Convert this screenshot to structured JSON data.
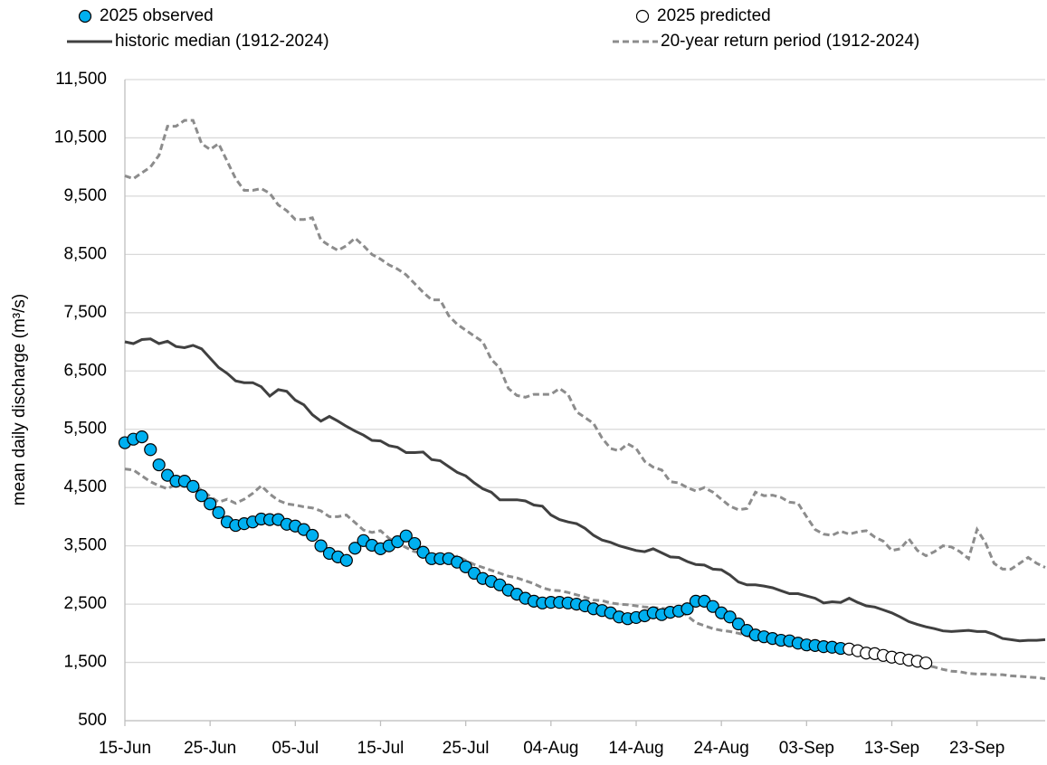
{
  "chart_data": {
    "type": "line",
    "y_label": "mean daily discharge (m³/s)",
    "ylim": [
      500,
      11500
    ],
    "yticks": [
      500,
      {
        "value": 1500,
        "label": "1,500"
      },
      {
        "value": 2500,
        "label": "2,500"
      },
      {
        "value": 3500,
        "label": "3,500"
      },
      {
        "value": 4500,
        "label": "4,500"
      },
      {
        "value": 5500,
        "label": "5,500"
      },
      {
        "value": 6500,
        "label": "6,500"
      },
      {
        "value": 7500,
        "label": "7,500"
      },
      {
        "value": 8500,
        "label": "8,500"
      },
      {
        "value": 9500,
        "label": "9,500"
      },
      {
        "value": 10500,
        "label": "10,500"
      },
      {
        "value": 11500,
        "label": "11,500"
      }
    ],
    "grid": true,
    "categories": [
      "15-Jun",
      null,
      null,
      null,
      null,
      null,
      null,
      null,
      null,
      null,
      "25-Jun",
      null,
      null,
      null,
      null,
      null,
      null,
      null,
      null,
      null,
      "05-Jul",
      null,
      null,
      null,
      null,
      null,
      null,
      null,
      null,
      null,
      "15-Jul",
      null,
      null,
      null,
      null,
      null,
      null,
      null,
      null,
      null,
      "25-Jul",
      null,
      null,
      null,
      null,
      null,
      null,
      null,
      null,
      null,
      "04-Aug",
      null,
      null,
      null,
      null,
      null,
      null,
      null,
      null,
      null,
      "14-Aug",
      null,
      null,
      null,
      null,
      null,
      null,
      null,
      null,
      null,
      "24-Aug",
      null,
      null,
      null,
      null,
      null,
      null,
      null,
      null,
      null,
      "03-Sep",
      null,
      null,
      null,
      null,
      null,
      null,
      null,
      null,
      null,
      "13-Sep",
      null,
      null,
      null,
      null,
      null,
      null,
      null,
      null,
      null,
      "23-Sep",
      null,
      null,
      null,
      null,
      null,
      null,
      null,
      null
    ],
    "series": [
      {
        "name": "2025 observed",
        "color": "#00b0f0",
        "style": "marker",
        "values": [
          5270,
          5330,
          5370,
          5150,
          4890,
          4710,
          4610,
          4610,
          4520,
          4360,
          4220,
          4070,
          3910,
          3850,
          3880,
          3910,
          3960,
          3950,
          3950,
          3870,
          3840,
          3780,
          3680,
          3500,
          3370,
          3310,
          3250,
          3460,
          3590,
          3510,
          3450,
          3500,
          3570,
          3670,
          3540,
          3390,
          3280,
          3280,
          3280,
          3220,
          3140,
          3030,
          2940,
          2890,
          2830,
          2740,
          2670,
          2600,
          2550,
          2520,
          2530,
          2530,
          2520,
          2500,
          2470,
          2420,
          2390,
          2350,
          2280,
          2250,
          2270,
          2300,
          2350,
          2320,
          2360,
          2380,
          2420,
          2550,
          2550,
          2460,
          2350,
          2280,
          2160,
          2050,
          1970,
          1940,
          1910,
          1880,
          1870,
          1830,
          1800,
          1790,
          1770,
          1760,
          1740,
          null,
          null,
          null,
          null,
          null,
          null,
          null,
          null,
          null,
          null,
          null,
          null,
          null,
          null,
          null,
          null,
          null,
          null,
          null,
          null,
          null,
          null,
          null,
          null
        ]
      },
      {
        "name": "2025 predicted",
        "color": "#ffffff",
        "style": "marker",
        "values": [
          null,
          null,
          null,
          null,
          null,
          null,
          null,
          null,
          null,
          null,
          null,
          null,
          null,
          null,
          null,
          null,
          null,
          null,
          null,
          null,
          null,
          null,
          null,
          null,
          null,
          null,
          null,
          null,
          null,
          null,
          null,
          null,
          null,
          null,
          null,
          null,
          null,
          null,
          null,
          null,
          null,
          null,
          null,
          null,
          null,
          null,
          null,
          null,
          null,
          null,
          null,
          null,
          null,
          null,
          null,
          null,
          null,
          null,
          null,
          null,
          null,
          null,
          null,
          null,
          null,
          null,
          null,
          null,
          null,
          null,
          null,
          null,
          null,
          null,
          null,
          null,
          null,
          null,
          null,
          null,
          null,
          null,
          null,
          null,
          null,
          1730,
          1700,
          1660,
          1650,
          1620,
          1590,
          1570,
          1540,
          1520,
          1490,
          null,
          null,
          null,
          null,
          null,
          null,
          null,
          null,
          null,
          null,
          null,
          null,
          null,
          null
        ]
      },
      {
        "name": "historic median (1912-2024)",
        "color": "#404040",
        "style": "line",
        "values": [
          7000,
          6970,
          7040,
          7050,
          6970,
          7010,
          6920,
          6900,
          6940,
          6880,
          6720,
          6560,
          6460,
          6330,
          6300,
          6300,
          6230,
          6070,
          6180,
          6150,
          6000,
          5920,
          5750,
          5640,
          5720,
          5640,
          5550,
          5470,
          5400,
          5310,
          5300,
          5220,
          5190,
          5100,
          5100,
          5110,
          4980,
          4960,
          4860,
          4760,
          4700,
          4580,
          4480,
          4420,
          4290,
          4290,
          4290,
          4270,
          4200,
          4180,
          4030,
          3950,
          3910,
          3880,
          3800,
          3680,
          3600,
          3560,
          3500,
          3460,
          3420,
          3400,
          3450,
          3380,
          3310,
          3300,
          3230,
          3180,
          3170,
          3100,
          3090,
          3000,
          2880,
          2830,
          2830,
          2810,
          2780,
          2730,
          2680,
          2680,
          2640,
          2600,
          2520,
          2540,
          2530,
          2600,
          2530,
          2470,
          2450,
          2400,
          2350,
          2280,
          2200,
          2150,
          2110,
          2080,
          2040,
          2030,
          2040,
          2050,
          2030,
          2030,
          1980,
          1910,
          1890,
          1870,
          1880,
          1880,
          1890
        ]
      },
      {
        "name": "20-year return period (1912-2024)",
        "color": "#8c8c8c",
        "style": "dashed",
        "values": [
          9850,
          9800,
          9900,
          10000,
          10200,
          10700,
          10700,
          10800,
          10800,
          10400,
          10300,
          10400,
          10100,
          9800,
          9600,
          9600,
          9630,
          9550,
          9350,
          9250,
          9100,
          9100,
          9130,
          8750,
          8650,
          8570,
          8650,
          8780,
          8650,
          8500,
          8420,
          8320,
          8250,
          8150,
          8000,
          7850,
          7720,
          7720,
          7450,
          7300,
          7200,
          7100,
          7000,
          6700,
          6550,
          6200,
          6080,
          6050,
          6100,
          6100,
          6100,
          6200,
          6100,
          5800,
          5700,
          5600,
          5350,
          5170,
          5130,
          5250,
          5170,
          4950,
          4850,
          4800,
          4600,
          4580,
          4500,
          4440,
          4500,
          4420,
          4300,
          4180,
          4120,
          4140,
          4420,
          4360,
          4370,
          4330,
          4250,
          4230,
          4000,
          3780,
          3700,
          3680,
          3750,
          3700,
          3740,
          3760,
          3650,
          3580,
          3420,
          3450,
          3620,
          3420,
          3330,
          3400,
          3500,
          3480,
          3400,
          3280,
          3780,
          3550,
          3200,
          3100,
          3100,
          3200,
          3300,
          3200,
          3130
        ],
        "lower_values": [
          4820,
          4800,
          4700,
          4600,
          4530,
          4480,
          4560,
          4600,
          4570,
          4450,
          4350,
          4250,
          4300,
          4230,
          4300,
          4400,
          4530,
          4390,
          4280,
          4220,
          4200,
          4170,
          4150,
          4100,
          4000,
          4000,
          4030,
          3900,
          3770,
          3730,
          3760,
          3630,
          3550,
          3470,
          3400,
          3380,
          3350,
          3350,
          3300,
          3320,
          3250,
          3180,
          3130,
          3080,
          3030,
          2980,
          2950,
          2900,
          2850,
          2780,
          2740,
          2730,
          2700,
          2660,
          2620,
          2570,
          2560,
          2520,
          2500,
          2490,
          2470,
          2450,
          2440,
          2430,
          2410,
          2400,
          2300,
          2180,
          2130,
          2080,
          2050,
          2030,
          2000,
          1960,
          1900,
          1880,
          1860,
          1850,
          1830,
          1820,
          1800,
          1780,
          1760,
          1730,
          1700,
          1690,
          1660,
          1630,
          1620,
          1590,
          1560,
          1530,
          1510,
          1480,
          1450,
          1420,
          1380,
          1350,
          1340,
          1310,
          1300,
          1300,
          1290,
          1290,
          1270,
          1260,
          1250,
          1240,
          1220
        ]
      }
    ]
  }
}
